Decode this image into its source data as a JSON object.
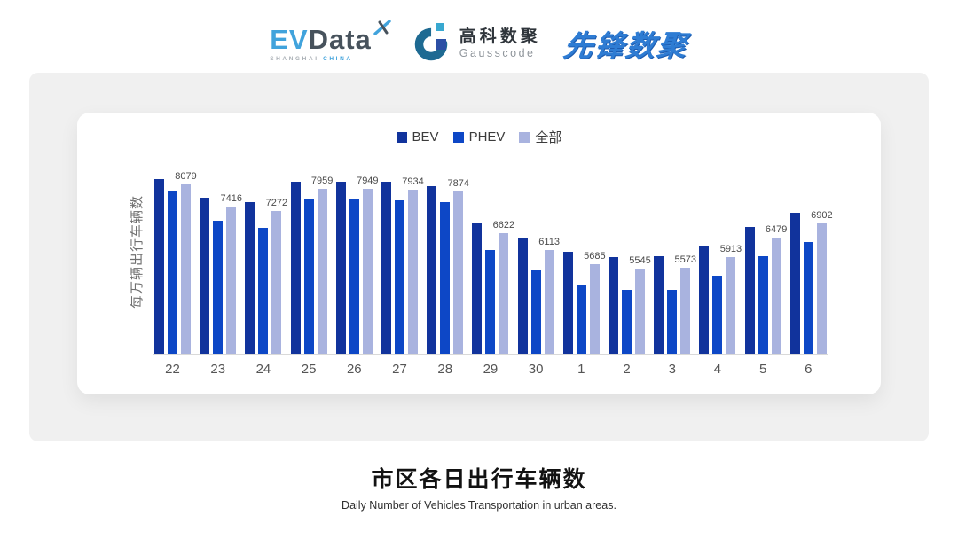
{
  "header": {
    "evdata_logo": {
      "ev": "EV",
      "data": "Data",
      "sub_left": "SHANGHAI",
      "sub_right": "CHINA"
    },
    "gausscode_logo": {
      "cn": "高科数聚",
      "en": "Gausscode"
    },
    "xianfeng_logo": {
      "text": "先锋数聚"
    }
  },
  "chart_data": {
    "type": "bar",
    "title": "市区各日出行车辆数",
    "subtitle": "Daily Number of Vehicles Transportation in urban areas.",
    "ylabel": "每万辆出行车辆数",
    "xlabel": "",
    "categories": [
      "22",
      "23",
      "24",
      "25",
      "26",
      "27",
      "28",
      "29",
      "30",
      "1",
      "2",
      "3",
      "4",
      "5",
      "6"
    ],
    "series": [
      {
        "name": "BEV",
        "color": "#11339c",
        "values": [
          8230,
          7670,
          7560,
          8160,
          8150,
          8150,
          8040,
          6900,
          6450,
          6060,
          5900,
          5925,
          6250,
          6810,
          7220
        ]
      },
      {
        "name": "PHEV",
        "color": "#0d47c6",
        "values": [
          7870,
          6980,
          6790,
          7640,
          7620,
          7590,
          7550,
          6100,
          5510,
          5050,
          4920,
          4920,
          5330,
          5920,
          6340
        ]
      },
      {
        "name": "全部",
        "color": "#a9b3df",
        "labeled": true,
        "values": [
          8079,
          7416,
          7272,
          7959,
          7949,
          7934,
          7874,
          6622,
          6113,
          5685,
          5545,
          5573,
          5913,
          6479,
          6902
        ]
      }
    ],
    "data_label_series": "全部",
    "data_labels": [
      8079,
      7416,
      7272,
      7959,
      7949,
      7934,
      7874,
      6622,
      6113,
      5685,
      5545,
      5573,
      5913,
      6479,
      6902
    ],
    "ylim": [
      3000,
      8800
    ],
    "legend_position": "top",
    "grid": false,
    "colors": {
      "axis_line": "#d9d9d9",
      "tick_text": "#555555",
      "label_text": "#4a4a4a"
    }
  }
}
